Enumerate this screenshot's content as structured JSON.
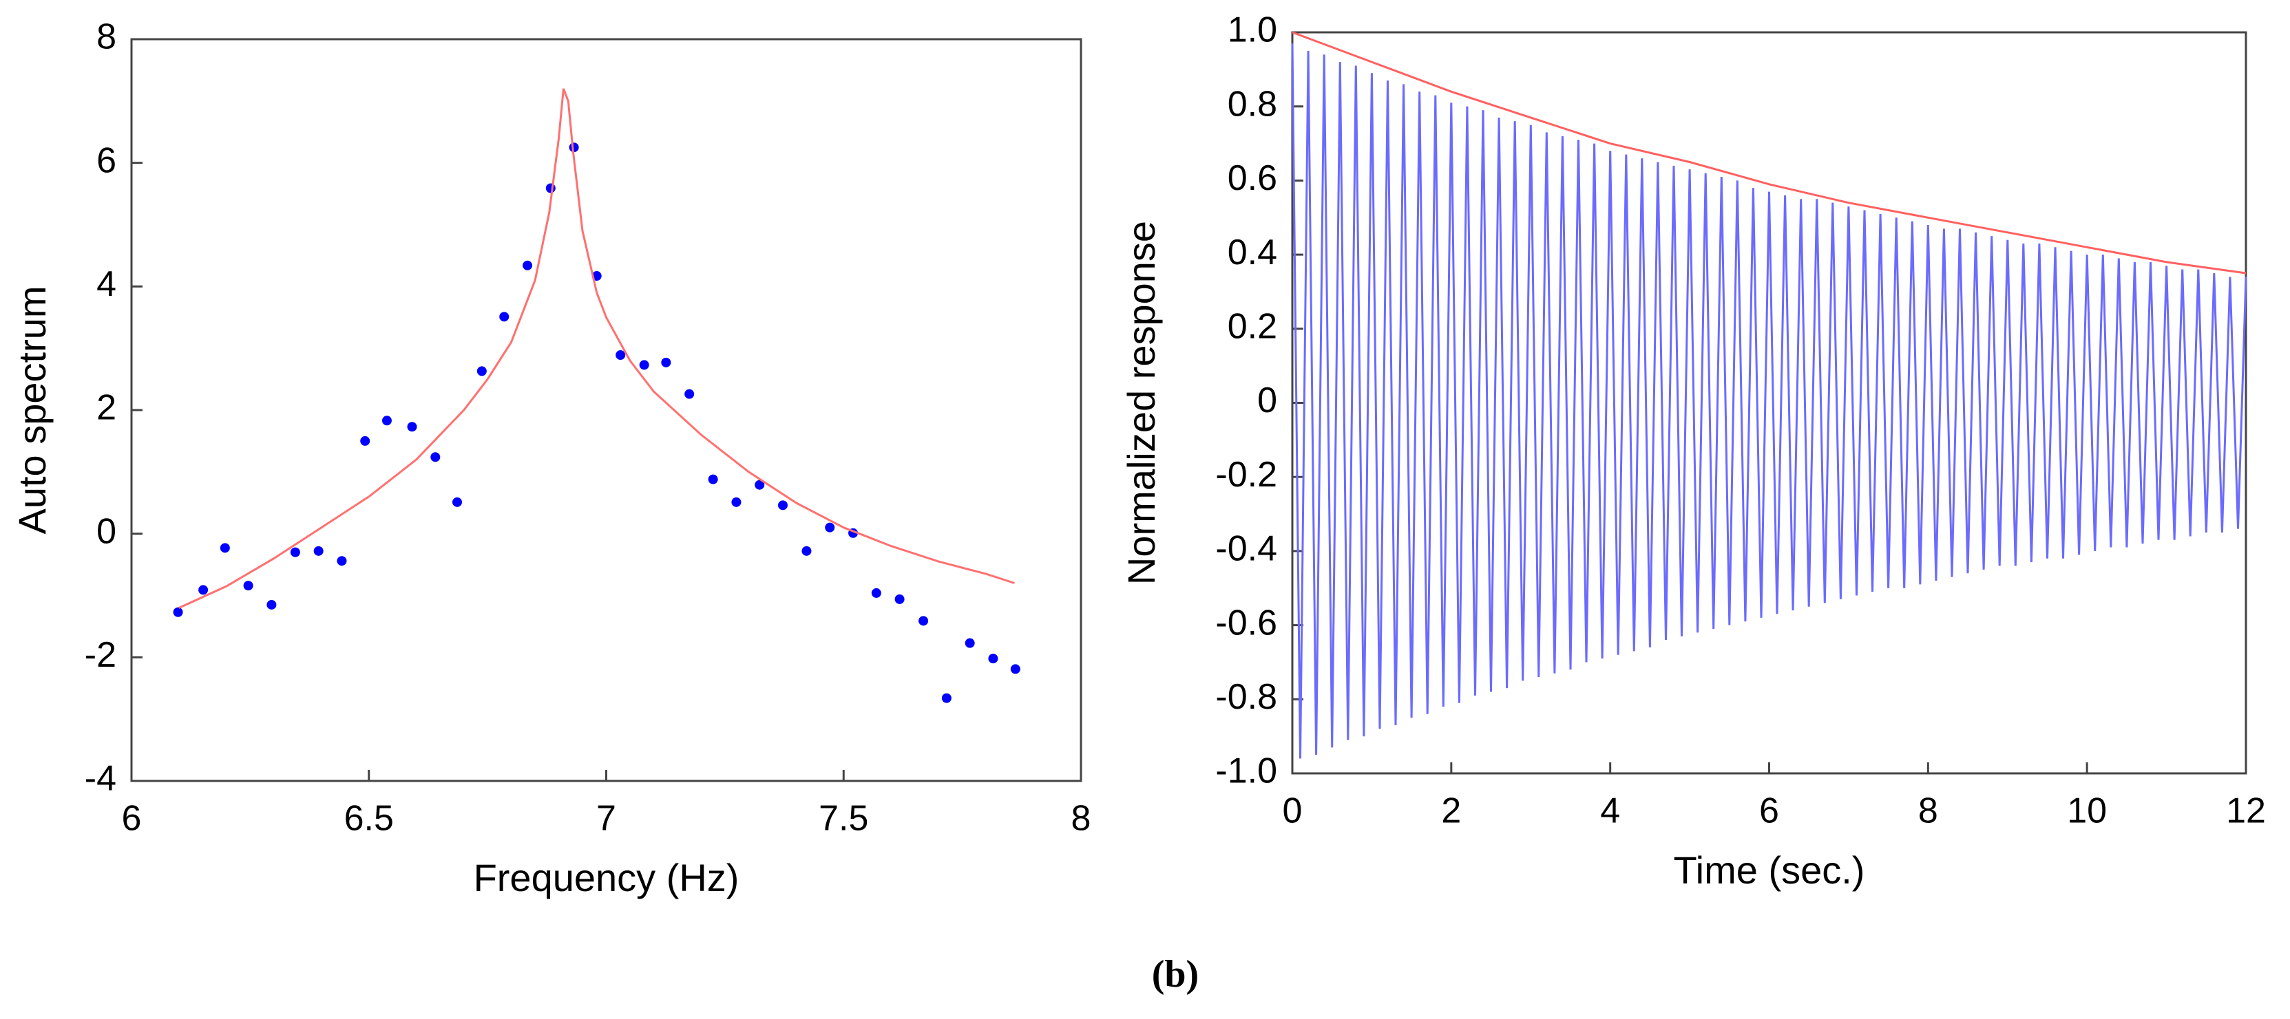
{
  "chart_data": [
    {
      "type": "scatter",
      "xlabel": "Frequency  (Hz)",
      "ylabel": "Auto  spectrum",
      "xlim": [
        6,
        8
      ],
      "xticks": [
        6,
        6.5,
        7,
        7.5,
        8
      ],
      "ylim": [
        -4,
        8
      ],
      "yticks": [
        -4,
        -2,
        0,
        2,
        4,
        6,
        8
      ],
      "series": [
        {
          "style": "markers",
          "color": "#0000ff",
          "x": [
            6.098,
            6.151,
            6.197,
            6.246,
            6.295,
            6.345,
            6.394,
            6.443,
            6.492,
            6.538,
            6.591,
            6.64,
            6.686,
            6.738,
            6.785,
            6.834,
            6.883,
            6.932,
            6.98,
            7.03,
            7.08,
            7.126,
            7.175,
            7.225,
            7.274,
            7.323,
            7.372,
            7.422,
            7.471,
            7.52,
            7.569,
            7.618,
            7.668,
            7.717,
            7.766,
            7.815,
            7.862
          ],
          "values": [
            -1.27,
            -0.91,
            -0.23,
            -0.84,
            -1.15,
            -0.3,
            -0.28,
            -0.44,
            1.5,
            1.83,
            1.73,
            1.24,
            0.51,
            2.63,
            3.51,
            4.34,
            5.59,
            6.25,
            4.17,
            2.89,
            2.73,
            2.77,
            2.26,
            0.88,
            0.51,
            0.79,
            0.46,
            -0.28,
            0.1,
            0.01,
            -0.96,
            -1.06,
            -1.41,
            -2.66,
            -1.77,
            -2.02,
            -2.19
          ]
        },
        {
          "style": "line",
          "color": "#ff7070",
          "x": [
            6.1,
            6.2,
            6.3,
            6.4,
            6.5,
            6.6,
            6.7,
            6.75,
            6.8,
            6.85,
            6.88,
            6.9,
            6.91,
            6.92,
            6.93,
            6.95,
            6.98,
            7.0,
            7.05,
            7.1,
            7.2,
            7.3,
            7.4,
            7.5,
            7.6,
            7.7,
            7.8,
            7.86
          ],
          "values": [
            -1.2,
            -0.85,
            -0.4,
            0.1,
            0.6,
            1.2,
            2.0,
            2.5,
            3.1,
            4.1,
            5.2,
            6.4,
            7.2,
            7.0,
            6.2,
            4.9,
            3.9,
            3.5,
            2.8,
            2.3,
            1.6,
            1.0,
            0.5,
            0.1,
            -0.2,
            -0.45,
            -0.65,
            -0.8
          ]
        }
      ]
    },
    {
      "type": "line",
      "xlabel": "Time  (sec.)",
      "ylabel": "Normalized  response",
      "xlim": [
        0,
        12
      ],
      "xticks": [
        0,
        2,
        4,
        6,
        8,
        10,
        12
      ],
      "ylim": [
        -1,
        1
      ],
      "yticks": [
        {
          "value": -1,
          "label": "-1.0"
        },
        -0.8,
        -0.6,
        -0.4,
        -0.2,
        0,
        0.2,
        0.4,
        0.6,
        0.8,
        {
          "value": 1,
          "label": "1.0"
        }
      ],
      "series": [
        {
          "style": "line",
          "color": "#6b6bff",
          "x": [
            0,
            0.1,
            0.2,
            0.3,
            0.4,
            0.5,
            0.6,
            0.7,
            0.8,
            0.9,
            1,
            1.1,
            1.2,
            1.3,
            1.4,
            1.5,
            1.6,
            1.7,
            1.8,
            1.9,
            2,
            2.1,
            2.2,
            2.3,
            2.4,
            2.5,
            2.6,
            2.7,
            2.8,
            2.9,
            3,
            3.1,
            3.2,
            3.3,
            3.4,
            3.5,
            3.6,
            3.7,
            3.8,
            3.9,
            4,
            4.1,
            4.2,
            4.3,
            4.4,
            4.5,
            4.6,
            4.7,
            4.8,
            4.9,
            5,
            5.1,
            5.2,
            5.3,
            5.4,
            5.5,
            5.6,
            5.7,
            5.8,
            5.9,
            6,
            6.1,
            6.2,
            6.3,
            6.4,
            6.5,
            6.6,
            6.7,
            6.8,
            6.9,
            7,
            7.1,
            7.2,
            7.3,
            7.4,
            7.5,
            7.6,
            7.7,
            7.8,
            7.9,
            8,
            8.1,
            8.2,
            8.3,
            8.4,
            8.5,
            8.6,
            8.7,
            8.8,
            8.9,
            9,
            9.1,
            9.2,
            9.3,
            9.4,
            9.5,
            9.6,
            9.7,
            9.8,
            9.9,
            10,
            10.1,
            10.2,
            10.3,
            10.4,
            10.5,
            10.6,
            10.7,
            10.8,
            10.9,
            11,
            11.1,
            11.2,
            11.3,
            11.4,
            11.5,
            11.6,
            11.7,
            11.8,
            11.9,
            12
          ],
          "values": [
            0.97,
            -0.96,
            0.95,
            -0.95,
            0.94,
            -0.93,
            0.92,
            -0.91,
            0.91,
            -0.9,
            0.89,
            -0.88,
            0.87,
            -0.87,
            0.86,
            -0.85,
            0.84,
            -0.84,
            0.83,
            -0.82,
            0.81,
            -0.81,
            0.8,
            -0.79,
            0.79,
            -0.78,
            0.77,
            -0.77,
            0.76,
            -0.75,
            0.75,
            -0.74,
            0.73,
            -0.73,
            0.72,
            -0.72,
            0.71,
            -0.7,
            0.7,
            -0.69,
            0.68,
            -0.68,
            0.67,
            -0.67,
            0.66,
            -0.66,
            0.65,
            -0.64,
            0.64,
            -0.63,
            0.63,
            -0.62,
            0.62,
            -0.61,
            0.61,
            -0.6,
            0.6,
            -0.59,
            0.58,
            -0.58,
            0.57,
            -0.57,
            0.56,
            -0.56,
            0.55,
            -0.55,
            0.55,
            -0.54,
            0.54,
            -0.53,
            0.53,
            -0.52,
            0.52,
            -0.51,
            0.51,
            -0.5,
            0.5,
            -0.5,
            0.49,
            -0.49,
            0.48,
            -0.48,
            0.47,
            -0.47,
            0.47,
            -0.46,
            0.46,
            -0.45,
            0.45,
            -0.44,
            0.44,
            -0.44,
            0.43,
            -0.43,
            0.43,
            -0.42,
            0.42,
            -0.42,
            0.41,
            -0.41,
            0.4,
            -0.4,
            0.4,
            -0.39,
            0.39,
            -0.39,
            0.38,
            -0.38,
            0.38,
            -0.37,
            0.37,
            -0.37,
            0.36,
            -0.36,
            0.36,
            -0.35,
            0.35,
            -0.35,
            0.34,
            -0.34,
            0.34
          ]
        },
        {
          "style": "line",
          "color": "#ff6060",
          "x": [
            0,
            1,
            2,
            3,
            4,
            5,
            6,
            7,
            8,
            9,
            10,
            11,
            12
          ],
          "values": [
            1.0,
            0.92,
            0.84,
            0.77,
            0.7,
            0.65,
            0.59,
            0.54,
            0.5,
            0.46,
            0.42,
            0.38,
            0.35
          ]
        }
      ]
    }
  ],
  "caption": "(b)"
}
